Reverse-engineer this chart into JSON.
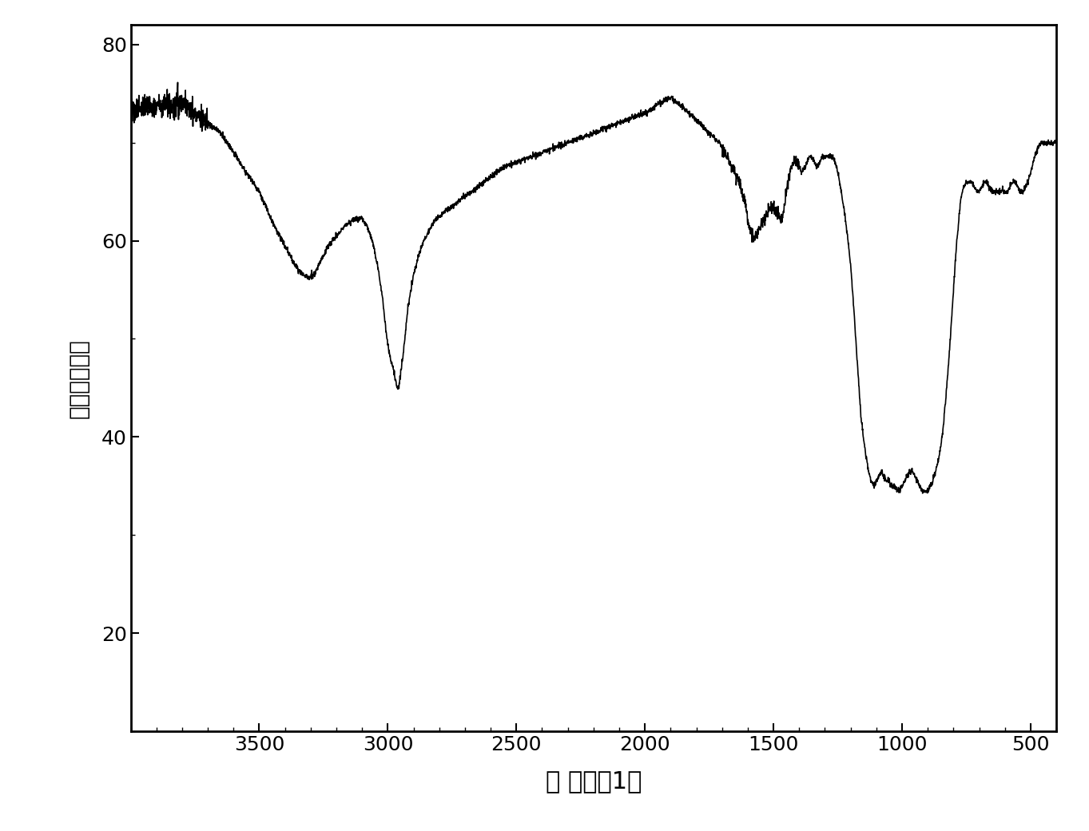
{
  "title": "",
  "xlabel": "波 数（－1）",
  "ylabel": "透过率（％）",
  "xlim": [
    4000,
    400
  ],
  "ylim": [
    10,
    82
  ],
  "xticks": [
    3500,
    3000,
    2500,
    2000,
    1500,
    1000,
    500
  ],
  "yticks": [
    20,
    40,
    60,
    80
  ],
  "line_color": "#000000",
  "background_color": "#ffffff",
  "xlabel_fontsize": 22,
  "ylabel_fontsize": 20,
  "tick_fontsize": 18
}
